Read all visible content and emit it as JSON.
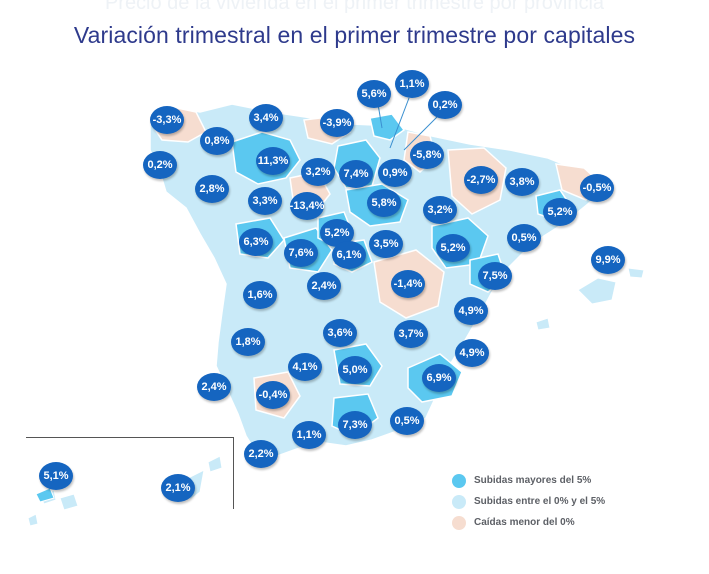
{
  "ghost_title": "Precio de la vivienda en el primer trimestre por provincia",
  "title": "Variación trimestral en el primer trimestre por capitales",
  "colors": {
    "high": "#5bc8f0",
    "mid": "#c9eaf8",
    "low": "#f6ddd0",
    "bubble": "#1565c0"
  },
  "labels": [
    {
      "value": "5,6%"
    },
    {
      "value": "1,1%"
    },
    {
      "value": "0,2%"
    },
    {
      "value": "-3,3%"
    },
    {
      "value": "3,4%"
    },
    {
      "value": "-3,9%"
    },
    {
      "value": "0,8%"
    },
    {
      "value": "-5,8%"
    },
    {
      "value": "0,2%"
    },
    {
      "value": "11,3%"
    },
    {
      "value": "3,2%"
    },
    {
      "value": "7,4%"
    },
    {
      "value": "0,9%"
    },
    {
      "value": "-2,7%"
    },
    {
      "value": "3,8%"
    },
    {
      "value": "-0,5%"
    },
    {
      "value": "2,8%"
    },
    {
      "value": "3,3%"
    },
    {
      "value": "-13,4%"
    },
    {
      "value": "5,8%"
    },
    {
      "value": "3,2%"
    },
    {
      "value": "5,2%"
    },
    {
      "value": "6,3%"
    },
    {
      "value": "7,6%"
    },
    {
      "value": "5,2%"
    },
    {
      "value": "6,1%"
    },
    {
      "value": "3,5%"
    },
    {
      "value": "5,2%"
    },
    {
      "value": "0,5%"
    },
    {
      "value": "9,9%"
    },
    {
      "value": "7,5%"
    },
    {
      "value": "1,6%"
    },
    {
      "value": "2,4%"
    },
    {
      "value": "-1,4%"
    },
    {
      "value": "4,9%"
    },
    {
      "value": "1,8%"
    },
    {
      "value": "3,6%"
    },
    {
      "value": "3,7%"
    },
    {
      "value": "4,9%"
    },
    {
      "value": "4,1%"
    },
    {
      "value": "5,0%"
    },
    {
      "value": "2,4%"
    },
    {
      "value": "-0,4%"
    },
    {
      "value": "6,9%"
    },
    {
      "value": "1,1%"
    },
    {
      "value": "7,3%"
    },
    {
      "value": "0,5%"
    },
    {
      "value": "2,2%"
    },
    {
      "value": "5,1%"
    },
    {
      "value": "2,1%"
    }
  ],
  "legend": [
    {
      "label": "Subidas mayores del 5%",
      "color": "#5bc8f0"
    },
    {
      "label": "Subidas entre el 0% y el 5%",
      "color": "#c9eaf8"
    },
    {
      "label": "Caídas menor del 0%",
      "color": "#f6ddd0"
    }
  ]
}
